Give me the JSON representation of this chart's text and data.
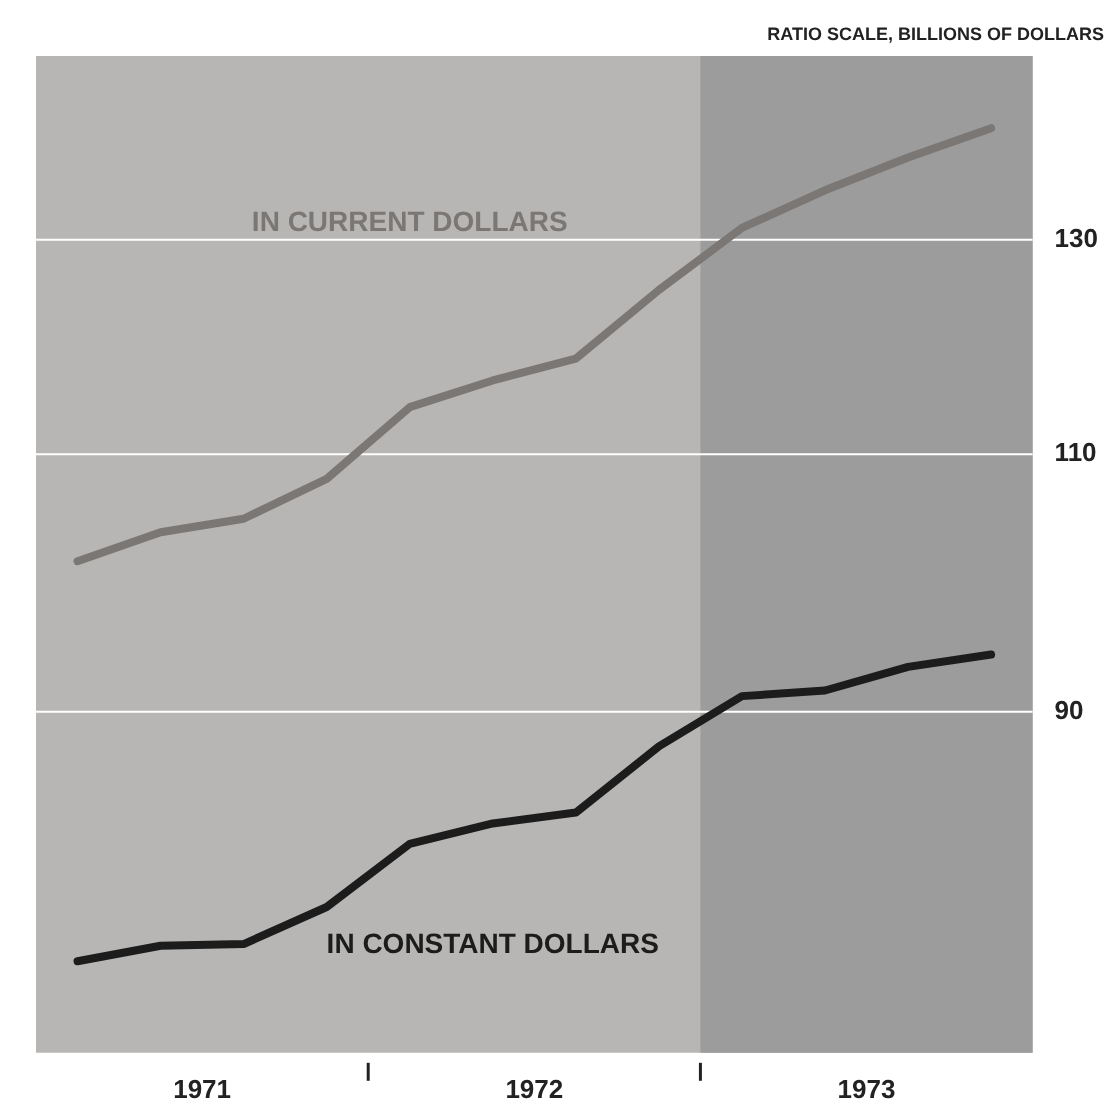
{
  "chart_data": {
    "type": "line",
    "ylabel": "RATIO SCALE, BILLIONS OF DOLLARS",
    "log": "y",
    "grid": "y",
    "legend": false,
    "marker": "none",
    "line_style": "solid",
    "xlim": [
      1971,
      1974
    ],
    "xticks": [
      {
        "value": 1971.5,
        "label": "1971"
      },
      {
        "value": 1972,
        "label": null
      },
      {
        "value": 1972.5,
        "label": "1972"
      },
      {
        "value": 1973,
        "label": null
      },
      {
        "value": 1973.5,
        "label": "1973"
      }
    ],
    "ylim": [
      69,
      150
    ],
    "yticks": [
      90,
      110,
      130
    ],
    "x": [
      1971.125,
      1971.375,
      1971.625,
      1971.875,
      1972.125,
      1972.375,
      1972.625,
      1972.875,
      1973.125,
      1973.375,
      1973.625,
      1973.875
    ],
    "bands": [
      {
        "axis": "x",
        "from": 1973,
        "to": 1974,
        "color": "#9c9c9c"
      }
    ],
    "series": [
      {
        "name": "IN CURRENT DOLLARS",
        "color": "#7a7774",
        "values": [
          101.2,
          103.5,
          104.6,
          107.9,
          114.1,
          116.5,
          118.5,
          125.0,
          131.2,
          135.1,
          138.6,
          141.8
        ]
      },
      {
        "name": "IN CONSTANT DOLLARS",
        "color": "#1c1c1c",
        "values": [
          74.1,
          75.0,
          75.1,
          77.3,
          81.2,
          82.5,
          83.2,
          87.6,
          91.1,
          91.5,
          93.2,
          94.1
        ]
      }
    ]
  }
}
